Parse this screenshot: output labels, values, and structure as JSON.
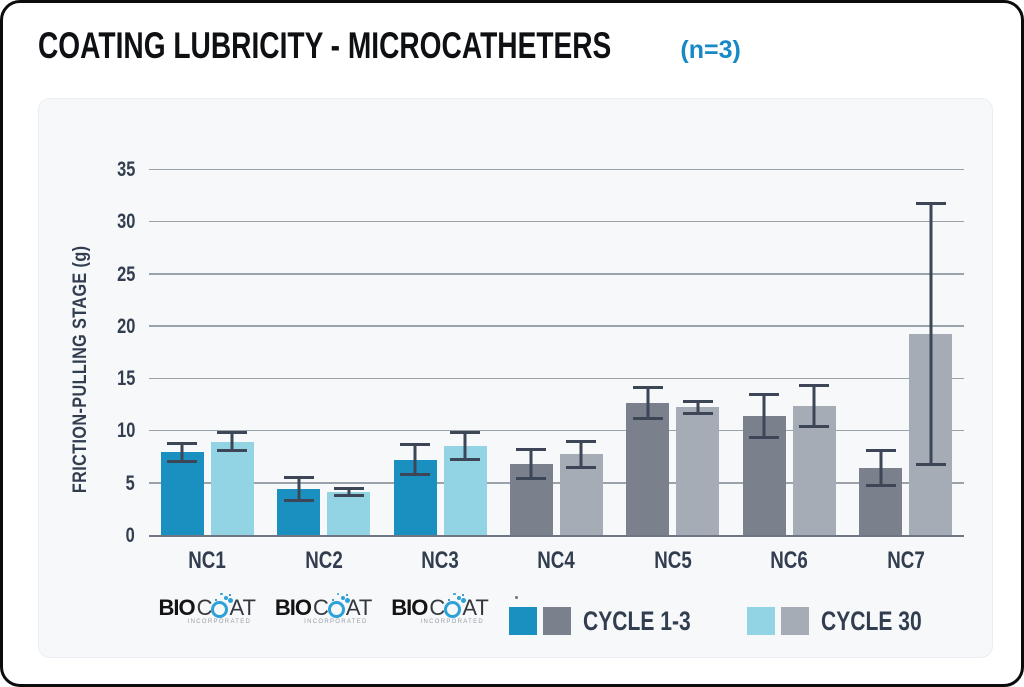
{
  "title": {
    "text": "COATING LUBRICITY - MICROCATHETERS",
    "suffix": "(n=3)"
  },
  "chart_data": {
    "type": "bar",
    "title": "COATING LUBRICITY - MICROCATHETERS (n=3)",
    "ylabel": "FRICTION-PULLING STAGE (g)",
    "xlabel": "",
    "ylim": [
      0,
      35
    ],
    "yticks": [
      0,
      5,
      10,
      15,
      20,
      25,
      30,
      35
    ],
    "grid": true,
    "legend_position": "bottom-right",
    "categories": [
      "NC1",
      "NC2",
      "NC3",
      "NC4",
      "NC5",
      "NC6",
      "NC7"
    ],
    "series": [
      {
        "name": "CYCLE 1-3",
        "values": [
          8.0,
          4.5,
          7.3,
          6.9,
          12.7,
          11.5,
          6.5
        ],
        "errors": [
          1.0,
          1.2,
          1.6,
          1.5,
          1.6,
          2.2,
          1.8
        ]
      },
      {
        "name": "CYCLE 30",
        "values": [
          9.0,
          4.2,
          8.6,
          7.8,
          12.3,
          12.4,
          19.3
        ],
        "errors": [
          1.0,
          0.5,
          1.4,
          1.4,
          0.7,
          2.1,
          12.6
        ]
      }
    ],
    "category_color_groups": [
      "biocoat",
      "biocoat",
      "biocoat",
      "standard",
      "standard",
      "standard",
      "standard"
    ],
    "colors": {
      "biocoat_cycle13": "#1a90c1",
      "biocoat_cycle30": "#92d3e4",
      "standard_cycle13": "#7a808c",
      "standard_cycle30": "#a6acb6",
      "error_bar": "#3c4657",
      "grid_line": "#9aa2ac",
      "axis_text": "#323e4f",
      "title_accent": "#1789c6"
    },
    "logo_categories": [
      0,
      1,
      2
    ]
  },
  "legend": {
    "items": [
      {
        "label": "CYCLE 1-3",
        "swatches": [
          "#1a90c1",
          "#7a808c"
        ]
      },
      {
        "label": "CYCLE 30",
        "swatches": [
          "#92d3e4",
          "#a6acb6"
        ]
      }
    ]
  },
  "logo": {
    "bio": "BIO",
    "c": "C",
    "at": "AT",
    "subtext": "INCORPORATED"
  }
}
